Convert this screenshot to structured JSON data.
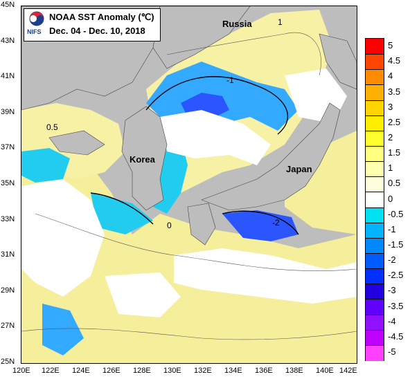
{
  "title": "NOAA SST Anomaly (℃)",
  "date_range": "Dec. 04 - Dec. 10,  2018",
  "logo_text": "NIFS",
  "regions": {
    "russia": "Russia",
    "korea": "Korea",
    "japan": "Japan"
  },
  "lat_labels": [
    "45N",
    "43N",
    "41N",
    "39N",
    "37N",
    "35N",
    "33N",
    "31N",
    "29N",
    "27N",
    "25N"
  ],
  "lon_labels": [
    "120E",
    "122E",
    "124E",
    "126E",
    "128E",
    "130E",
    "132E",
    "134E",
    "136E",
    "138E",
    "140E",
    "142E"
  ],
  "contour_labels": [
    "0.5",
    "-1",
    "-2",
    "0",
    "1"
  ],
  "colorbar": {
    "labels": [
      "5",
      "4.5",
      "4",
      "3.5",
      "3",
      "2.5",
      "2",
      "1.5",
      "1",
      "0.5",
      "0",
      "-0.5",
      "-1",
      "-1.5",
      "-2",
      "-2.5",
      "-3",
      "-3.5",
      "-4",
      "-4.5",
      "-5"
    ],
    "colors": [
      "#ff0000",
      "#ff4500",
      "#ff8c00",
      "#ffb000",
      "#ffd400",
      "#ffee00",
      "#ffff30",
      "#ffff80",
      "#ffffb0",
      "#ffffe0",
      "#ffffff",
      "#00e0f0",
      "#00b4ff",
      "#0088ff",
      "#005cff",
      "#0030ff",
      "#2000e0",
      "#6000ff",
      "#9010ff",
      "#c000ff",
      "#ff40ff"
    ]
  },
  "land_color": "#bdbdbd",
  "cloud_color": "#ffffff"
}
